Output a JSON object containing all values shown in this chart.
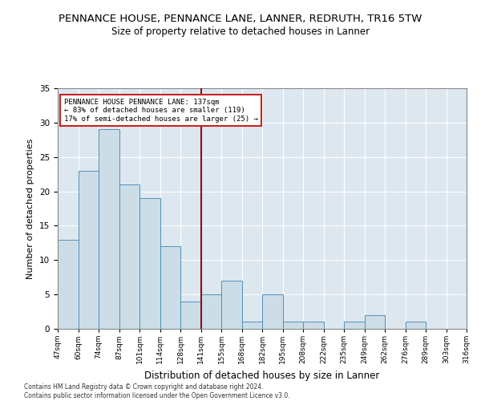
{
  "title1": "PENNANCE HOUSE, PENNANCE LANE, LANNER, REDRUTH, TR16 5TW",
  "title2": "Size of property relative to detached houses in Lanner",
  "xlabel": "Distribution of detached houses by size in Lanner",
  "ylabel": "Number of detached properties",
  "bar_values": [
    13,
    23,
    29,
    21,
    19,
    12,
    4,
    5,
    7,
    1,
    5,
    1,
    1,
    0,
    1,
    2,
    0,
    1,
    0,
    0
  ],
  "bin_labels": [
    "47sqm",
    "60sqm",
    "74sqm",
    "87sqm",
    "101sqm",
    "114sqm",
    "128sqm",
    "141sqm",
    "155sqm",
    "168sqm",
    "182sqm",
    "195sqm",
    "208sqm",
    "222sqm",
    "235sqm",
    "249sqm",
    "262sqm",
    "276sqm",
    "289sqm",
    "303sqm",
    "316sqm"
  ],
  "bar_color": "#ccdde8",
  "bar_edge_color": "#5090b8",
  "vline_index": 7.0,
  "vline_color": "#8b1010",
  "annotation_text": "PENNANCE HOUSE PENNANCE LANE: 137sqm\n← 83% of detached houses are smaller (119)\n17% of semi-detached houses are larger (25) →",
  "annotation_box_color": "#ffffff",
  "annotation_box_edge": "#cc2222",
  "ylim": [
    0,
    35
  ],
  "yticks": [
    0,
    5,
    10,
    15,
    20,
    25,
    30,
    35
  ],
  "background_color": "#dde7f0",
  "footer_text": "Contains HM Land Registry data © Crown copyright and database right 2024.\nContains public sector information licensed under the Open Government Licence v3.0.",
  "title1_fontsize": 9.5,
  "title2_fontsize": 8.5,
  "xlabel_fontsize": 8.5,
  "ylabel_fontsize": 8
}
